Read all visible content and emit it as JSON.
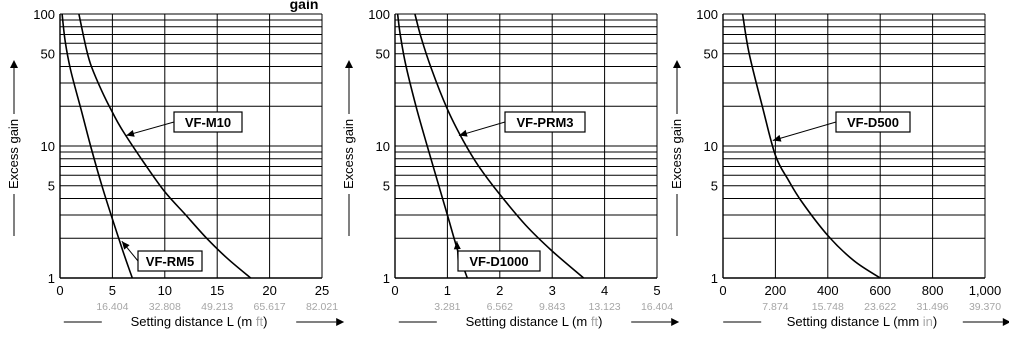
{
  "header_fragment": "gain",
  "colors": {
    "axis": "#000000",
    "grid": "#000000",
    "curve": "#000000",
    "secondary_tick": "#a6a6a6"
  },
  "chart_data": [
    {
      "type": "line",
      "ylabel": "Excess gain",
      "y_scale": "log",
      "ylim": [
        1,
        100
      ],
      "y_labeled_ticks": [
        "1",
        "5",
        "10",
        "50",
        "100"
      ],
      "xlim": [
        0,
        25
      ],
      "x_ticks": [
        "0",
        "5",
        "10",
        "15",
        "20",
        "25"
      ],
      "x_tick_values": [
        0,
        5,
        10,
        15,
        20,
        25
      ],
      "x_secondary_ticks": [
        "16.404",
        "32.808",
        "49.213",
        "65.617",
        "82.021"
      ],
      "xlabel_prefix": "Setting distance L (m ",
      "xlabel_unit": "ft",
      "xlabel_suffix": ")",
      "series": [
        {
          "name": "VF-RM5",
          "x": [
            0.2,
            0.5,
            1,
            2,
            3,
            4,
            5,
            6,
            6.9
          ],
          "y": [
            100,
            62,
            38,
            19,
            9.5,
            5,
            2.8,
            1.6,
            1
          ]
        },
        {
          "name": "VF-M10",
          "x": [
            1.8,
            2.5,
            3,
            4,
            5,
            6,
            8,
            10,
            12,
            14,
            16,
            18.2
          ],
          "y": [
            100,
            55,
            40,
            26,
            18,
            13,
            7.5,
            4.5,
            3,
            2,
            1.4,
            1
          ]
        }
      ],
      "labels": [
        {
          "text": "VF-RM5",
          "target": [
            5.9,
            1.9
          ]
        },
        {
          "text": "VF-M10",
          "target": [
            6.3,
            12
          ]
        }
      ]
    },
    {
      "type": "line",
      "ylabel": "Excess gain",
      "y_scale": "log",
      "ylim": [
        1,
        100
      ],
      "y_labeled_ticks": [
        "1",
        "5",
        "10",
        "50",
        "100"
      ],
      "xlim": [
        0,
        5
      ],
      "x_ticks": [
        "0",
        "1",
        "2",
        "3",
        "4",
        "5"
      ],
      "x_tick_values": [
        0,
        1,
        2,
        3,
        4,
        5
      ],
      "x_secondary_ticks": [
        "3.281",
        "6.562",
        "9.843",
        "13.123",
        "16.404"
      ],
      "xlabel_prefix": "Setting distance L (m ",
      "xlabel_unit": "ft",
      "xlabel_suffix": ")",
      "series": [
        {
          "name": "VF-D1000",
          "x": [
            0.05,
            0.1,
            0.2,
            0.4,
            0.6,
            0.8,
            1.0,
            1.2,
            1.38
          ],
          "y": [
            100,
            70,
            42,
            20,
            10.5,
            5.6,
            3,
            1.6,
            1
          ]
        },
        {
          "name": "VF-PRM3",
          "x": [
            0.38,
            0.5,
            0.7,
            1.0,
            1.3,
            1.6,
            2.0,
            2.5,
            3.0,
            3.6
          ],
          "y": [
            100,
            66,
            38,
            19,
            11,
            7,
            4.3,
            2.5,
            1.6,
            1
          ]
        }
      ],
      "labels": [
        {
          "text": "VF-D1000",
          "target": [
            1.18,
            1.9
          ]
        },
        {
          "text": "VF-PRM3",
          "target": [
            1.22,
            12
          ]
        }
      ]
    },
    {
      "type": "line",
      "ylabel": "Excess gain",
      "y_scale": "log",
      "ylim": [
        1,
        100
      ],
      "y_labeled_ticks": [
        "1",
        "5",
        "10",
        "50",
        "100"
      ],
      "xlim": [
        0,
        1000
      ],
      "x_ticks": [
        "0",
        "200",
        "400",
        "600",
        "800",
        "1,000"
      ],
      "x_tick_values": [
        0,
        200,
        400,
        600,
        800,
        1000
      ],
      "x_secondary_ticks": [
        "7.874",
        "15.748",
        "23.622",
        "31.496",
        "39.370"
      ],
      "xlabel_prefix": "Setting distance L (mm ",
      "xlabel_unit": "in",
      "xlabel_suffix": ")",
      "series": [
        {
          "name": "VF-D500",
          "x": [
            75,
            100,
            150,
            200,
            250,
            300,
            400,
            500,
            600
          ],
          "y": [
            100,
            50,
            20,
            8.5,
            5.5,
            3.8,
            2.1,
            1.35,
            1
          ]
        }
      ],
      "labels": [
        {
          "text": "VF-D500",
          "target": [
            190,
            11
          ]
        }
      ]
    }
  ]
}
